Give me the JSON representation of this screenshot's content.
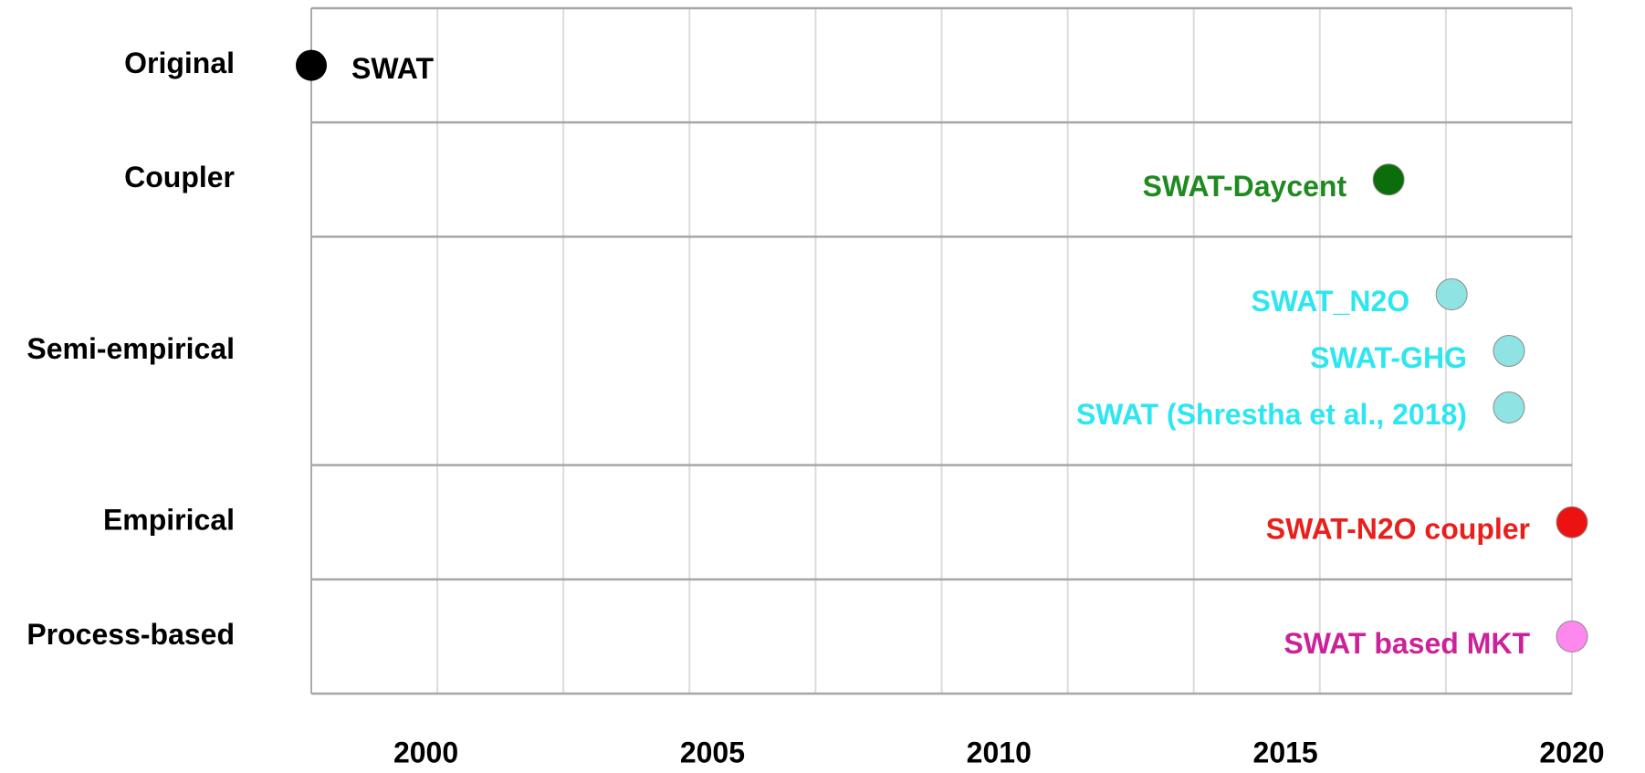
{
  "chart_data": {
    "type": "timeline",
    "categories": [
      "Original",
      "Coupler",
      "Semi-empirical",
      "Empirical",
      "Process-based"
    ],
    "xlim": [
      1998,
      2020
    ],
    "xticks": [
      2000,
      2005,
      2010,
      2015,
      2020
    ],
    "series": [
      {
        "name": "SWAT",
        "category": "Original",
        "x": 1998,
        "color": "#000000",
        "label_color": "#000000"
      },
      {
        "name": "SWAT-Daycent",
        "category": "Coupler",
        "x": 2016.8,
        "color": "#0b6e0b",
        "label_color": "#1f8a1f"
      },
      {
        "name": "SWAT_N2O",
        "category": "Semi-empirical",
        "x": 2017.9,
        "color": "#8fe3e3",
        "label_color": "#2ee6f0"
      },
      {
        "name": "SWAT-GHG",
        "category": "Semi-empirical",
        "x": 2018.9,
        "color": "#8fe3e3",
        "label_color": "#2ee6f0"
      },
      {
        "name": "SWAT (Shrestha et al., 2018)",
        "category": "Semi-empirical",
        "x": 2018.9,
        "color": "#8fe3e3",
        "label_color": "#2ee6f0"
      },
      {
        "name": "SWAT-N2O coupler",
        "category": "Empirical",
        "x": 2020,
        "color": "#ee1111",
        "label_color": "#e8201c"
      },
      {
        "name": "SWAT based MKT",
        "category": "Process-based",
        "x": 2020,
        "color": "#ff88ee",
        "label_color": "#cc2299"
      }
    ]
  }
}
